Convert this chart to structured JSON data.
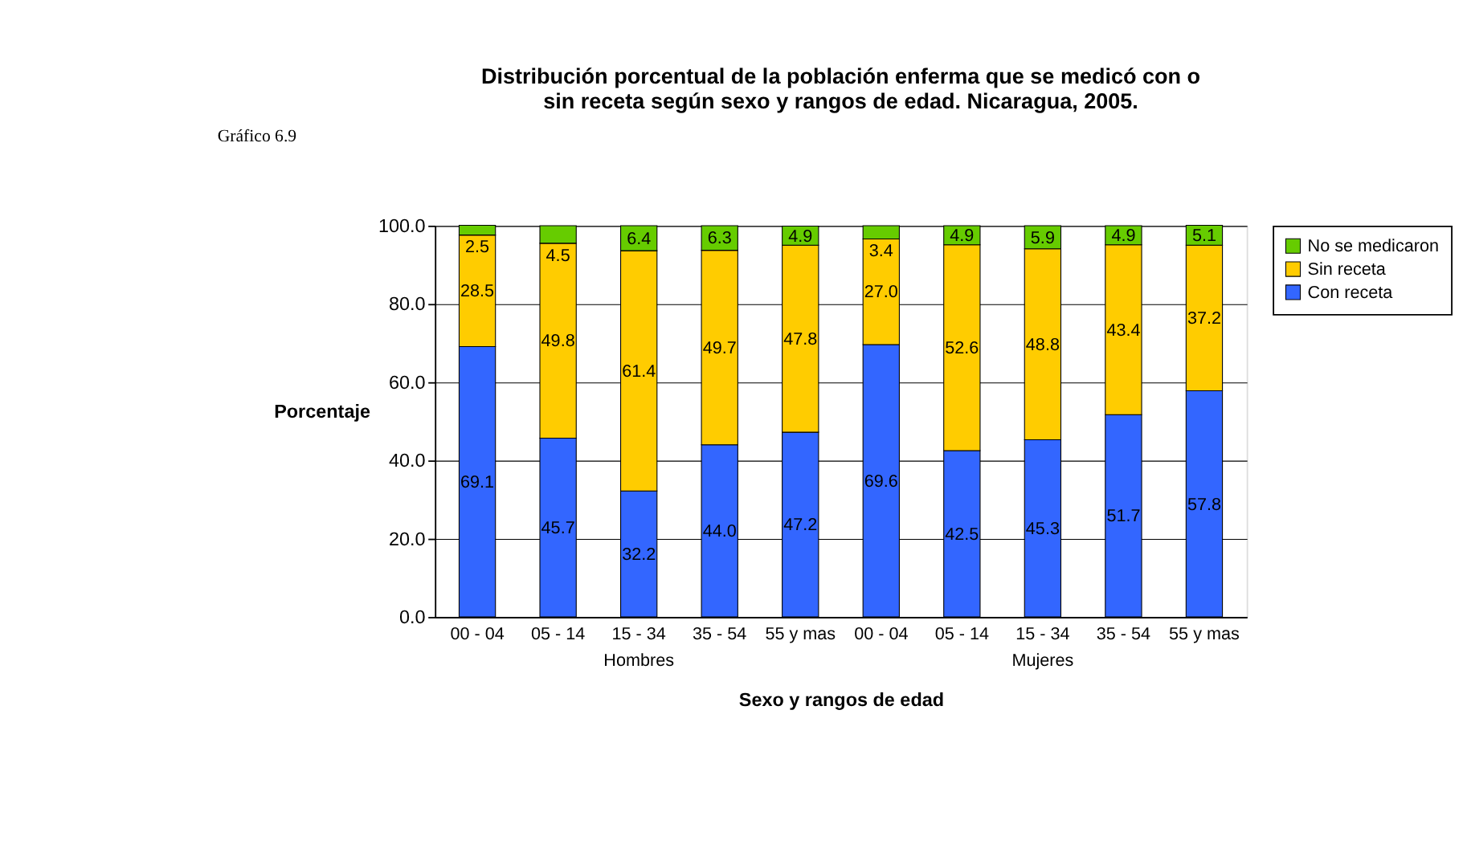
{
  "chart_data": {
    "type": "bar",
    "stacked": true,
    "title": "Distribución porcentual de la población enferma que se medicó con o sin receta según sexo y rangos de edad. Nicaragua, 2005.",
    "xlabel": "Sexo y rangos de edad",
    "ylabel": "Porcentaje",
    "annotations": [
      "Gráfico 6.9",
      "Hombres",
      "Mujeres"
    ],
    "categories": [
      "00 - 04",
      "05 - 14",
      "15 - 34",
      "35 - 54",
      "55 y mas",
      "00 - 04",
      "05 - 14",
      "15 - 34",
      "35 - 54",
      "55 y mas"
    ],
    "series": [
      {
        "name": "Con receta",
        "color": "#3366ff",
        "values": [
          69.1,
          45.7,
          32.2,
          44.0,
          47.2,
          69.6,
          42.5,
          45.3,
          51.7,
          57.8
        ],
        "value_labels": [
          "69.1",
          "45.7",
          "32.2",
          "44.0",
          "47.2",
          "69.6",
          "42.5",
          "45.3",
          "51.7",
          "57.8"
        ]
      },
      {
        "name": "Sin receta",
        "color": "#ffcc00",
        "values": [
          28.5,
          49.8,
          61.4,
          49.7,
          47.8,
          27.0,
          52.6,
          48.8,
          43.4,
          37.2
        ],
        "value_labels": [
          "28.5",
          "49.8",
          "61.4",
          "49.7",
          "47.8",
          "27.0",
          "52.6",
          "48.8",
          "43.4",
          "37.2"
        ]
      },
      {
        "name": "No se medicaron",
        "color": "#66cc00",
        "values": [
          2.5,
          4.5,
          6.4,
          6.3,
          4.9,
          3.4,
          4.9,
          5.9,
          4.9,
          5.1
        ],
        "value_labels": [
          "2.5",
          "4.5",
          "6.4",
          "6.3",
          "4.9",
          "3.4",
          "4.9",
          "5.9",
          "4.9",
          "5.1"
        ]
      }
    ],
    "ylim": [
      0,
      100
    ],
    "yticks": [
      {
        "value": 0,
        "label": "0.0"
      },
      {
        "value": 20,
        "label": "20.0"
      },
      {
        "value": 40,
        "label": "40.0"
      },
      {
        "value": 60,
        "label": "60.0"
      },
      {
        "value": 80,
        "label": "80.0"
      },
      {
        "value": 100,
        "label": "100.0"
      }
    ],
    "grid": "y",
    "legend": "right"
  }
}
